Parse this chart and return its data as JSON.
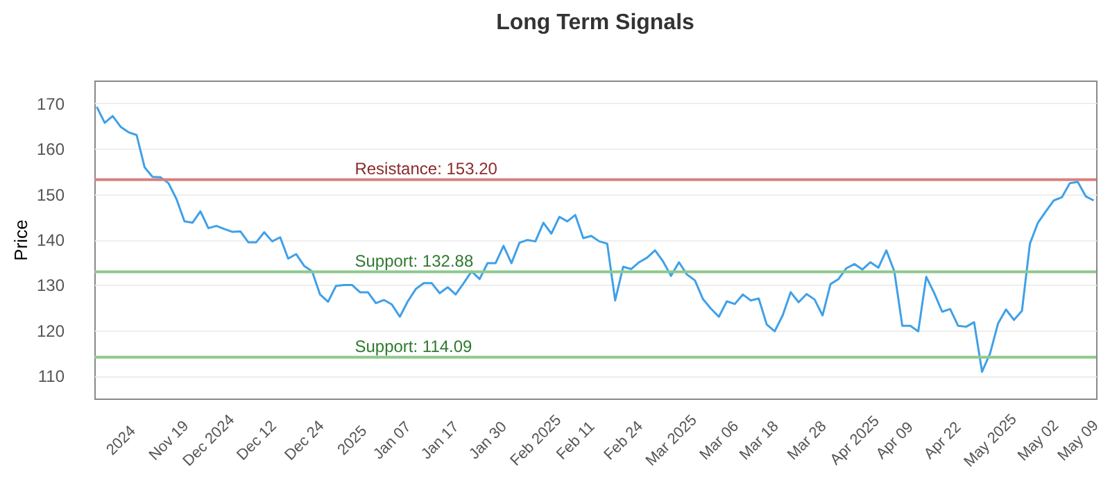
{
  "chart_data": {
    "type": "line",
    "title": "Long Term Signals",
    "ylabel": "Price",
    "categories": [
      null,
      null,
      null,
      "2024",
      null,
      null,
      null,
      null,
      null,
      "Nov 19",
      null,
      null,
      null,
      null,
      "Dec 2024",
      null,
      null,
      null,
      null,
      null,
      "Dec 12",
      null,
      null,
      null,
      null,
      null,
      "Dec 24",
      null,
      null,
      null,
      null,
      null,
      "2025",
      null,
      null,
      null,
      null,
      "Jan 07",
      null,
      null,
      null,
      null,
      null,
      "Jan 17",
      null,
      null,
      null,
      null,
      null,
      "Jan 30",
      null,
      null,
      null,
      null,
      null,
      "Feb 2025",
      null,
      null,
      null,
      null,
      "Feb 11",
      null,
      null,
      null,
      null,
      null,
      "Feb 24",
      null,
      null,
      null,
      null,
      null,
      "Mar 2025",
      null,
      null,
      null,
      null,
      null,
      "Mar 06",
      null,
      null,
      null,
      null,
      "Mar 18",
      null,
      null,
      null,
      null,
      null,
      "Mar 28",
      null,
      null,
      null,
      null,
      null,
      "Apr 2025",
      null,
      null,
      null,
      null,
      "Apr 09",
      null,
      null,
      null,
      null,
      null,
      "Apr 22",
      null,
      null,
      null,
      null,
      null,
      "May 2025",
      null,
      null,
      null,
      null,
      null,
      "May 02",
      null,
      null,
      null,
      null,
      "May 09",
      null,
      null
    ],
    "series": [
      {
        "color": "#3fa0e8",
        "values": [
          169.2,
          165.7,
          167.2,
          164.8,
          163.6,
          163,
          155.9,
          153.8,
          153.7,
          152.4,
          148.9,
          144,
          143.7,
          146.2,
          142.5,
          143,
          142.3,
          141.7,
          141.8,
          139.4,
          139.4,
          141.6,
          139.6,
          140.5,
          135.8,
          136.8,
          134.2,
          133,
          127.9,
          126.3,
          129.8,
          130,
          130,
          128.4,
          128.4,
          126,
          126.7,
          125.7,
          123,
          126.4,
          129.1,
          130.4,
          130.4,
          128.2,
          129.5,
          127.9,
          130.4,
          133,
          131.3,
          134.8,
          134.8,
          138.6,
          134.8,
          139.3,
          139.9,
          139.6,
          143.7,
          141.3,
          145,
          144,
          145.4,
          140.3,
          140.8,
          139.6,
          139.1,
          126.6,
          134,
          133.5,
          135,
          136,
          137.6,
          135.2,
          132,
          135,
          132.3,
          131,
          126.9,
          124.8,
          123,
          126.4,
          125.8,
          127.9,
          126.6,
          127,
          121.3,
          119.8,
          123.3,
          128.4,
          126.2,
          128,
          126.8,
          123.3,
          130.2,
          131.3,
          133.7,
          134.6,
          133.4,
          135,
          133.8,
          137.6,
          133,
          121,
          121,
          119.8,
          131.8,
          128.2,
          124.1,
          124.7,
          121,
          120.8,
          121.8,
          110.9,
          114.9,
          121.5,
          124.6,
          122.3,
          124.3,
          139.1,
          143.7,
          146.2,
          148.6,
          149.3,
          152.4,
          152.7,
          149.5,
          148.6
        ]
      }
    ],
    "ylim": [
      105,
      175
    ],
    "yticks": [
      110,
      120,
      130,
      140,
      150,
      160,
      170
    ],
    "grid": "y",
    "ref_lines": [
      {
        "axis": "y",
        "value": 153.2,
        "label": "Resistance: 153.20",
        "color": "#d9807e"
      },
      {
        "axis": "y",
        "value": 132.88,
        "label": "Support: 132.88",
        "color": "#8cc98c"
      },
      {
        "axis": "y",
        "value": 114.09,
        "label": "Support: 114.09",
        "color": "#8cc98c"
      }
    ]
  }
}
